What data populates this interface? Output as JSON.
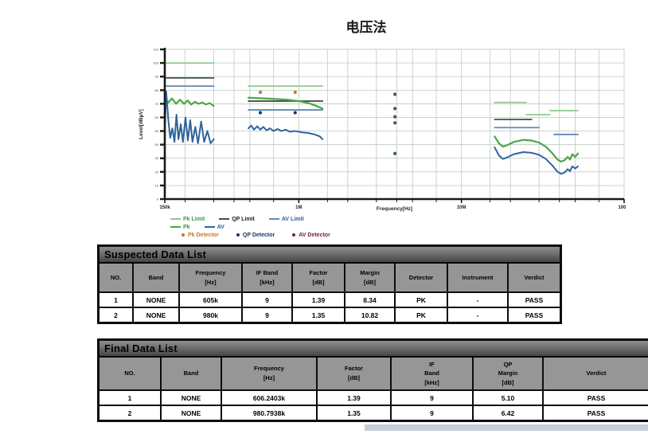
{
  "page": {
    "title": "电压法"
  },
  "chart_data": {
    "type": "line",
    "xlabel": "Frequency[Hz]",
    "ylabel": "Level[dBµV]",
    "x_scale": "log",
    "x_unit": "MHz",
    "xlim": [
      0.15,
      100
    ],
    "ylim": [
      0,
      110
    ],
    "grid": true,
    "x_ticks": [
      {
        "f": 0.15,
        "label": "150k"
      },
      {
        "f": 1,
        "label": "1M"
      },
      {
        "f": 10,
        "label": "10M"
      },
      {
        "f": 100,
        "label": "100M"
      }
    ],
    "x_grid": [
      0.2,
      0.3,
      0.4,
      0.5,
      0.7,
      1,
      1.5,
      2,
      3,
      4,
      5,
      7,
      10,
      15,
      20,
      30,
      40,
      50,
      70,
      100
    ],
    "y_ticks": [
      0,
      10,
      20,
      30,
      40,
      50,
      60,
      70,
      80,
      90,
      100,
      110
    ],
    "series": [
      {
        "name": "Pk Limit",
        "color": "#8fca8f",
        "width": 1.8,
        "segments": [
          [
            [
              0.15,
              100
            ],
            [
              0.3,
              100
            ]
          ],
          [
            [
              0.49,
              83
            ],
            [
              1.4,
              83
            ]
          ],
          [
            [
              16,
              71
            ],
            [
              25,
              71
            ]
          ],
          [
            [
              25,
              62
            ],
            [
              35,
              62
            ]
          ],
          [
            [
              35,
              65
            ],
            [
              52,
              65
            ]
          ]
        ]
      },
      {
        "name": "QP Limit",
        "color": "#3d5248",
        "width": 1.8,
        "segments": [
          [
            [
              0.15,
              89
            ],
            [
              0.3,
              89
            ]
          ],
          [
            [
              0.49,
              72
            ],
            [
              1.4,
              72
            ]
          ],
          [
            [
              16,
              58.5
            ],
            [
              27,
              58.5
            ]
          ]
        ]
      },
      {
        "name": "AV Limit",
        "color": "#6189b4",
        "width": 1.8,
        "segments": [
          [
            [
              0.15,
              83
            ],
            [
              0.3,
              83
            ]
          ],
          [
            [
              0.49,
              65.5
            ],
            [
              1.4,
              65.5
            ]
          ],
          [
            [
              16,
              52.5
            ],
            [
              30,
              52.5
            ]
          ],
          [
            [
              37,
              47.5
            ],
            [
              52,
              47.5
            ]
          ]
        ]
      },
      {
        "name": "Pk",
        "color": "#4aa64a",
        "width": 2.2,
        "segments": [
          [
            [
              0.15,
              75
            ],
            [
              0.158,
              71
            ],
            [
              0.166,
              74
            ],
            [
              0.176,
              70
            ],
            [
              0.186,
              73
            ],
            [
              0.197,
              70
            ],
            [
              0.207,
              72.5
            ],
            [
              0.218,
              69.5
            ],
            [
              0.23,
              71.5
            ],
            [
              0.242,
              70
            ],
            [
              0.255,
              71
            ],
            [
              0.268,
              69.5
            ],
            [
              0.283,
              70.5
            ],
            [
              0.3,
              68.5
            ]
          ],
          [
            [
              0.49,
              74.5
            ],
            [
              0.6,
              74
            ],
            [
              0.72,
              73.5
            ],
            [
              0.85,
              73
            ],
            [
              1.0,
              72
            ],
            [
              1.15,
              70.5
            ],
            [
              1.28,
              68.5
            ],
            [
              1.4,
              66.5
            ]
          ],
          [
            [
              16,
              46
            ],
            [
              17,
              41
            ],
            [
              18,
              38.5
            ],
            [
              19,
              39.5
            ],
            [
              21,
              42
            ],
            [
              24,
              43.5
            ],
            [
              27,
              43
            ],
            [
              30,
              41.5
            ],
            [
              33,
              38.5
            ],
            [
              36,
              34
            ],
            [
              39,
              29
            ],
            [
              41,
              27.5
            ],
            [
              43,
              28.5
            ],
            [
              45,
              31
            ],
            [
              46.5,
              29
            ],
            [
              48,
              33
            ],
            [
              50,
              31
            ],
            [
              52,
              33.5
            ]
          ]
        ]
      },
      {
        "name": "AV",
        "color": "#2f649c",
        "width": 2,
        "segments": [
          [
            [
              0.15,
              50
            ],
            [
              0.153,
              79
            ],
            [
              0.158,
              57
            ],
            [
              0.162,
              45
            ],
            [
              0.167,
              52
            ],
            [
              0.172,
              42
            ],
            [
              0.177,
              62
            ],
            [
              0.182,
              44
            ],
            [
              0.188,
              55
            ],
            [
              0.194,
              42
            ],
            [
              0.201,
              60
            ],
            [
              0.208,
              43
            ],
            [
              0.215,
              58
            ],
            [
              0.222,
              42
            ],
            [
              0.231,
              53
            ],
            [
              0.24,
              41
            ],
            [
              0.251,
              57
            ],
            [
              0.262,
              42
            ],
            [
              0.274,
              50
            ],
            [
              0.287,
              41
            ],
            [
              0.3,
              44
            ]
          ],
          [
            [
              0.49,
              52
            ],
            [
              0.51,
              54
            ],
            [
              0.53,
              51
            ],
            [
              0.555,
              53.5
            ],
            [
              0.58,
              51
            ],
            [
              0.605,
              53
            ],
            [
              0.635,
              50.5
            ],
            [
              0.665,
              52
            ],
            [
              0.7,
              50
            ],
            [
              0.74,
              51.5
            ],
            [
              0.78,
              50
            ],
            [
              0.83,
              51
            ],
            [
              0.88,
              49.5
            ],
            [
              0.95,
              50
            ],
            [
              1.05,
              49
            ],
            [
              1.15,
              48.5
            ],
            [
              1.25,
              47.5
            ],
            [
              1.35,
              46
            ],
            [
              1.4,
              44
            ]
          ],
          [
            [
              16,
              38
            ],
            [
              17,
              32
            ],
            [
              18,
              29.5
            ],
            [
              19,
              30.5
            ],
            [
              21,
              33
            ],
            [
              24,
              34.5
            ],
            [
              27,
              34
            ],
            [
              30,
              32.5
            ],
            [
              33,
              29.5
            ],
            [
              36,
              25
            ],
            [
              39,
              20
            ],
            [
              41,
              18.5
            ],
            [
              43,
              19.5
            ],
            [
              45,
              22
            ],
            [
              46.5,
              20.5
            ],
            [
              48,
              24
            ],
            [
              50,
              22.5
            ],
            [
              52,
              24
            ]
          ]
        ]
      }
    ],
    "markers": [
      {
        "name": "Pk Detector",
        "color": "#bf7a33",
        "points": [
          [
            0.58,
            78.5
          ],
          [
            0.95,
            78.5
          ]
        ]
      },
      {
        "name": "QP Detector",
        "color": "#22336b",
        "points": [
          [
            0.58,
            63.5
          ],
          [
            0.95,
            63.5
          ]
        ]
      },
      {
        "name": "Detector Points",
        "color": "#44566b",
        "points": [
          [
            3.9,
            77
          ],
          [
            3.9,
            66.5
          ],
          [
            3.9,
            60.5
          ],
          [
            3.9,
            56
          ],
          [
            3.9,
            33.5
          ]
        ]
      }
    ]
  },
  "legend": {
    "rows": [
      [
        {
          "kind": "line",
          "color": "#8fca8f",
          "label": "Pk Limit",
          "text": "#3f9a3f"
        },
        {
          "kind": "line",
          "color": "#3d5248",
          "label": "QP Limit",
          "text": "#15202e"
        },
        {
          "kind": "line",
          "color": "#6189b4",
          "label": "AV Limit",
          "text": "#2b5e9c"
        }
      ],
      [
        {
          "kind": "line",
          "color": "#4aa64a",
          "label": "Pk",
          "text": "#3f9a3f"
        },
        {
          "kind": "line",
          "color": "#2f649c",
          "label": "AV",
          "text": "#2b5e9c"
        }
      ],
      [
        {
          "kind": "dot",
          "color": "#bf7a33",
          "label": "Pk Detector",
          "text": "#bf7a33"
        },
        {
          "kind": "dot",
          "color": "#22336b",
          "label": "QP Detector",
          "text": "#22336b"
        },
        {
          "kind": "dot",
          "color": "#732433",
          "label": "AV Detector",
          "text": "#732433"
        }
      ]
    ]
  },
  "suspected_table": {
    "title": "Suspected Data List",
    "columns": [
      "NO.",
      "Band",
      "Frequency\n[Hz]",
      "IF Band\n[kHz]",
      "Factor\n[dB]",
      "Margin\n[dB]",
      "Detector",
      "Instrument",
      "Verdict"
    ],
    "rows": [
      [
        "1",
        "NONE",
        "605k",
        "9",
        "1.39",
        "8.34",
        "PK",
        "-",
        "PASS"
      ],
      [
        "2",
        "NONE",
        "980k",
        "9",
        "1.35",
        "10.82",
        "PK",
        "-",
        "PASS"
      ]
    ]
  },
  "final_table": {
    "title": "Final Data List",
    "columns": [
      "NO.",
      "Band",
      "Frequency\n[Hz]",
      "Factor\n[dB]",
      "IF\nBand\n[kHz]",
      "QP\nMargin\n[dB]",
      "Verdict"
    ],
    "rows": [
      [
        "1",
        "NONE",
        "606.2403k",
        "1.39",
        "9",
        "5.10",
        "PASS"
      ],
      [
        "2",
        "NONE",
        "980.7938k",
        "1.35",
        "9",
        "6.42",
        "PASS"
      ]
    ]
  }
}
